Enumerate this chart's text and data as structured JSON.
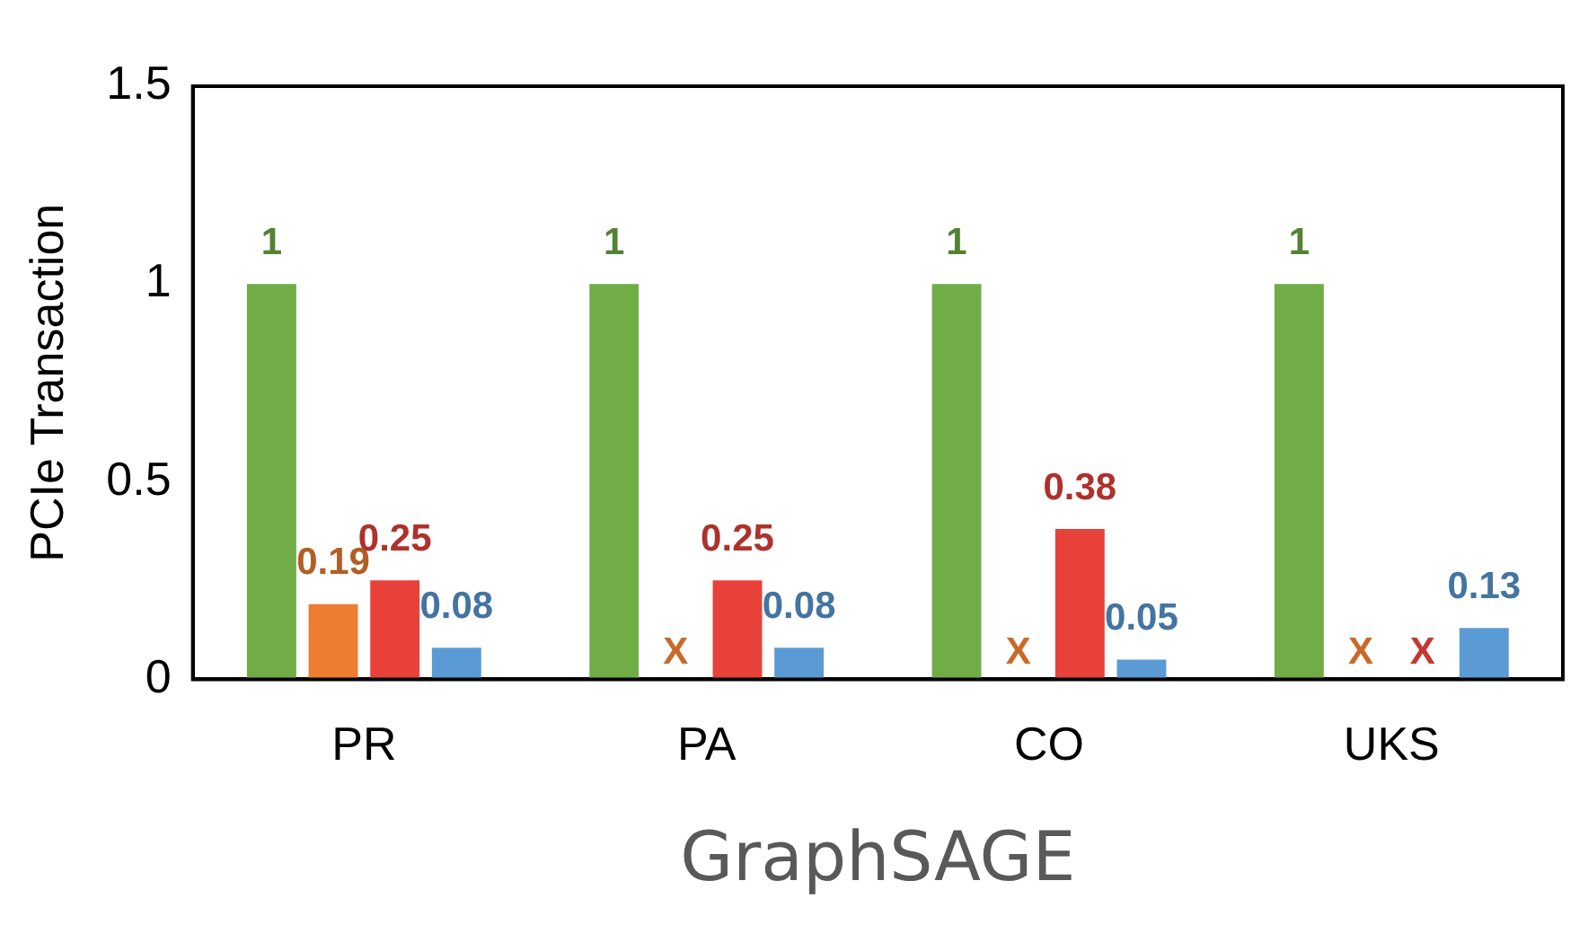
{
  "chart_data": {
    "type": "bar",
    "ylabel": "PCIe Transaction",
    "xlabel": "GraphSAGE",
    "categories": [
      "PR",
      "PA",
      "CO",
      "UKS"
    ],
    "series": [
      {
        "color": "#70ad47",
        "values": [
          1,
          1,
          1,
          1
        ]
      },
      {
        "color": "#ed7d31",
        "values": [
          0.19,
          null,
          null,
          null
        ]
      },
      {
        "color": "#e8413a",
        "values": [
          0.25,
          0.25,
          0.38,
          null
        ]
      },
      {
        "color": "#5b9bd5",
        "values": [
          0.08,
          0.08,
          0.05,
          0.13
        ]
      }
    ],
    "ylim": [
      0,
      1.5
    ],
    "yticks": [
      0,
      0.5,
      1,
      1.5
    ],
    "grid": false,
    "data_labels": true,
    "annotations": [
      "X",
      "X",
      "X",
      "X"
    ]
  }
}
